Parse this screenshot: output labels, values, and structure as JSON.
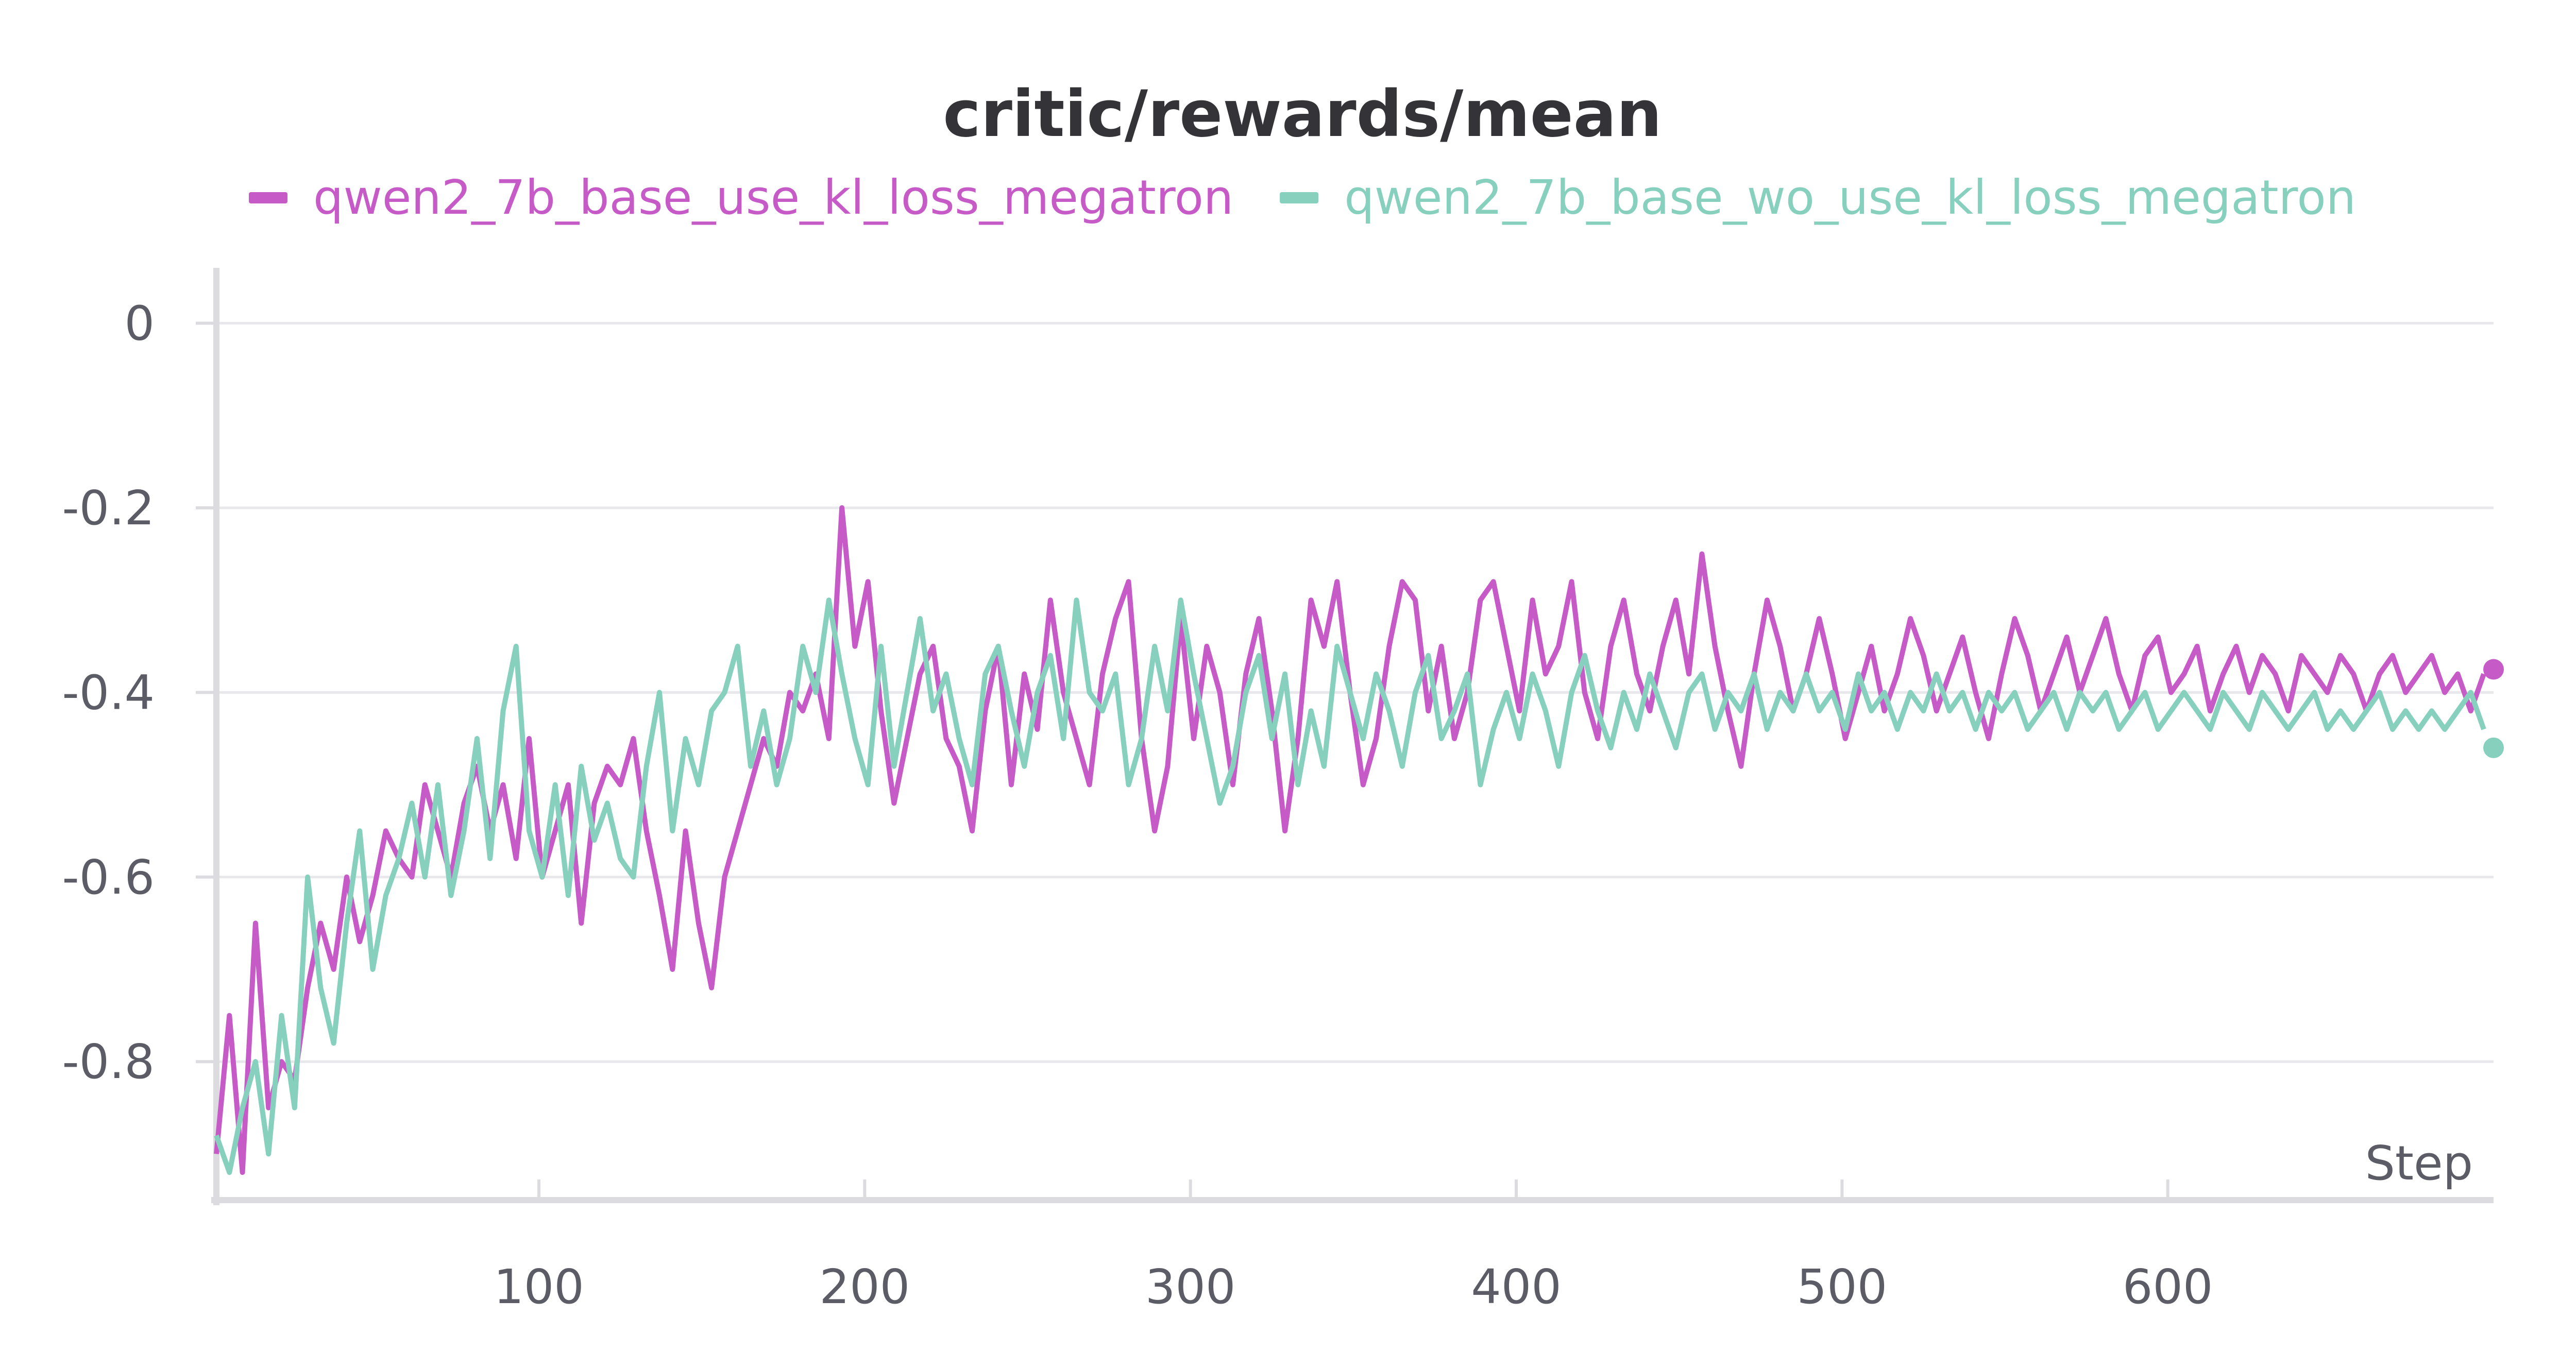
{
  "chart_data": {
    "type": "line",
    "title": "critic/rewards/mean",
    "xlabel": "Step",
    "ylabel": "",
    "xlim": [
      1,
      700
    ],
    "ylim": [
      -0.95,
      0.06
    ],
    "xticks": [
      100,
      200,
      300,
      400,
      500,
      600
    ],
    "yticks": [
      0,
      -0.2,
      -0.4,
      -0.6,
      -0.8
    ],
    "ytick_labels": [
      "0",
      "-0.2",
      "-0.4",
      "-0.6",
      "-0.8"
    ],
    "grid": true,
    "legend_position": "top-center",
    "series": [
      {
        "name": "qwen2_7b_base_use_kl_loss_megatron",
        "color": "#c65bc7",
        "x_start": 1,
        "x_step": 4,
        "values": [
          -0.9,
          -0.75,
          -0.92,
          -0.65,
          -0.85,
          -0.8,
          -0.82,
          -0.72,
          -0.65,
          -0.7,
          -0.6,
          -0.67,
          -0.62,
          -0.55,
          -0.58,
          -0.6,
          -0.5,
          -0.55,
          -0.6,
          -0.52,
          -0.48,
          -0.55,
          -0.5,
          -0.58,
          -0.45,
          -0.6,
          -0.55,
          -0.5,
          -0.65,
          -0.52,
          -0.48,
          -0.5,
          -0.45,
          -0.55,
          -0.62,
          -0.7,
          -0.55,
          -0.65,
          -0.72,
          -0.6,
          -0.55,
          -0.5,
          -0.45,
          -0.48,
          -0.4,
          -0.42,
          -0.38,
          -0.45,
          -0.2,
          -0.35,
          -0.28,
          -0.42,
          -0.52,
          -0.45,
          -0.38,
          -0.35,
          -0.45,
          -0.48,
          -0.55,
          -0.42,
          -0.35,
          -0.5,
          -0.38,
          -0.44,
          -0.3,
          -0.4,
          -0.45,
          -0.5,
          -0.38,
          -0.32,
          -0.28,
          -0.45,
          -0.55,
          -0.48,
          -0.32,
          -0.45,
          -0.35,
          -0.4,
          -0.5,
          -0.38,
          -0.32,
          -0.42,
          -0.55,
          -0.45,
          -0.3,
          -0.35,
          -0.28,
          -0.4,
          -0.5,
          -0.45,
          -0.35,
          -0.28,
          -0.3,
          -0.42,
          -0.35,
          -0.45,
          -0.4,
          -0.3,
          -0.28,
          -0.35,
          -0.42,
          -0.3,
          -0.38,
          -0.35,
          -0.28,
          -0.4,
          -0.45,
          -0.35,
          -0.3,
          -0.38,
          -0.42,
          -0.35,
          -0.3,
          -0.38,
          -0.25,
          -0.35,
          -0.42,
          -0.48,
          -0.38,
          -0.3,
          -0.35,
          -0.42,
          -0.38,
          -0.32,
          -0.38,
          -0.45,
          -0.4,
          -0.35,
          -0.42,
          -0.38,
          -0.32,
          -0.36,
          -0.42,
          -0.38,
          -0.34,
          -0.4,
          -0.45,
          -0.38,
          -0.32,
          -0.36,
          -0.42,
          -0.38,
          -0.34,
          -0.4,
          -0.36,
          -0.32,
          -0.38,
          -0.42,
          -0.36,
          -0.34,
          -0.4,
          -0.38,
          -0.35,
          -0.42,
          -0.38,
          -0.35,
          -0.4,
          -0.36,
          -0.38,
          -0.42,
          -0.36,
          -0.38,
          -0.4,
          -0.36,
          -0.38,
          -0.42,
          -0.38,
          -0.36,
          -0.4,
          -0.38,
          -0.36,
          -0.4,
          -0.38,
          -0.42,
          -0.38,
          -0.4,
          -0.38,
          -0.42,
          -0.38,
          -0.4,
          -0.42,
          -0.38,
          -0.45,
          -0.4,
          -0.38,
          -0.42,
          -0.4,
          -0.38,
          -0.36,
          -0.4
        ],
        "last_value": -0.375
      },
      {
        "name": "qwen2_7b_base_wo_use_kl_loss_megatron",
        "color": "#87d0be",
        "x_start": 1,
        "x_step": 4,
        "values": [
          -0.88,
          -0.92,
          -0.85,
          -0.8,
          -0.9,
          -0.75,
          -0.85,
          -0.6,
          -0.72,
          -0.78,
          -0.65,
          -0.55,
          -0.7,
          -0.62,
          -0.58,
          -0.52,
          -0.6,
          -0.5,
          -0.62,
          -0.55,
          -0.45,
          -0.58,
          -0.42,
          -0.35,
          -0.55,
          -0.6,
          -0.5,
          -0.62,
          -0.48,
          -0.56,
          -0.52,
          -0.58,
          -0.6,
          -0.48,
          -0.4,
          -0.55,
          -0.45,
          -0.5,
          -0.42,
          -0.4,
          -0.35,
          -0.48,
          -0.42,
          -0.5,
          -0.45,
          -0.35,
          -0.4,
          -0.3,
          -0.38,
          -0.45,
          -0.5,
          -0.35,
          -0.48,
          -0.4,
          -0.32,
          -0.42,
          -0.38,
          -0.45,
          -0.5,
          -0.38,
          -0.35,
          -0.42,
          -0.48,
          -0.4,
          -0.36,
          -0.45,
          -0.3,
          -0.4,
          -0.42,
          -0.38,
          -0.5,
          -0.45,
          -0.35,
          -0.42,
          -0.3,
          -0.38,
          -0.45,
          -0.52,
          -0.48,
          -0.4,
          -0.36,
          -0.45,
          -0.38,
          -0.5,
          -0.42,
          -0.48,
          -0.35,
          -0.4,
          -0.45,
          -0.38,
          -0.42,
          -0.48,
          -0.4,
          -0.36,
          -0.45,
          -0.42,
          -0.38,
          -0.5,
          -0.44,
          -0.4,
          -0.45,
          -0.38,
          -0.42,
          -0.48,
          -0.4,
          -0.36,
          -0.42,
          -0.46,
          -0.4,
          -0.44,
          -0.38,
          -0.42,
          -0.46,
          -0.4,
          -0.38,
          -0.44,
          -0.4,
          -0.42,
          -0.38,
          -0.44,
          -0.4,
          -0.42,
          -0.38,
          -0.42,
          -0.4,
          -0.44,
          -0.38,
          -0.42,
          -0.4,
          -0.44,
          -0.4,
          -0.42,
          -0.38,
          -0.42,
          -0.4,
          -0.44,
          -0.4,
          -0.42,
          -0.4,
          -0.44,
          -0.42,
          -0.4,
          -0.44,
          -0.4,
          -0.42,
          -0.4,
          -0.44,
          -0.42,
          -0.4,
          -0.44,
          -0.42,
          -0.4,
          -0.42,
          -0.44,
          -0.4,
          -0.42,
          -0.44,
          -0.4,
          -0.42,
          -0.44,
          -0.42,
          -0.4,
          -0.44,
          -0.42,
          -0.44,
          -0.42,
          -0.4,
          -0.44,
          -0.42,
          -0.44,
          -0.42,
          -0.44,
          -0.42,
          -0.4,
          -0.44,
          -0.42,
          -0.44,
          -0.46,
          -0.42,
          -0.44,
          -0.42,
          -0.44,
          -0.46,
          -0.44
        ],
        "last_value": -0.46
      }
    ]
  }
}
